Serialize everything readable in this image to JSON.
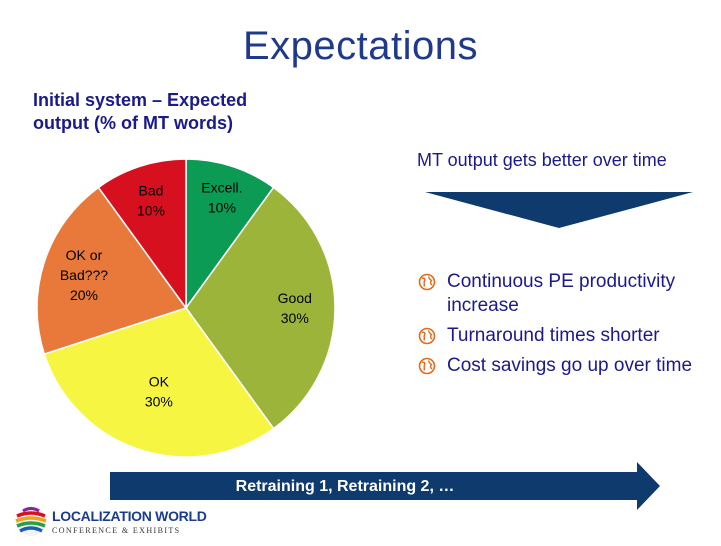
{
  "slide": {
    "title": "Expectations"
  },
  "chart_data": {
    "type": "pie",
    "title": "Initial system – Expected output (% of MT words)",
    "slices": [
      {
        "label_lines": [
          "Excell.",
          "10%"
        ],
        "name": "Excell.",
        "value": 10,
        "color": "#0b9b55"
      },
      {
        "label_lines": [
          "Good",
          "30%"
        ],
        "name": "Good",
        "value": 30,
        "color": "#9db43a"
      },
      {
        "label_lines": [
          "OK",
          "30%"
        ],
        "name": "OK",
        "value": 30,
        "color": "#f5f542"
      },
      {
        "label_lines": [
          "OK or",
          "Bad???",
          "20%"
        ],
        "name": "OK or Bad???",
        "value": 20,
        "color": "#e8793a"
      },
      {
        "label_lines": [
          "Bad",
          "10%"
        ],
        "name": "Bad",
        "value": 10,
        "color": "#d7101f"
      }
    ]
  },
  "right_panel": {
    "headline": "MT output gets better over time",
    "arrow_color": "#0f3a6e",
    "bullets": [
      "Continuous PE productivity increase",
      "Turnaround times shorter",
      "Cost savings go up over time"
    ]
  },
  "bottom_arrow": {
    "label": "Retraining 1, Retraining 2, …",
    "color": "#0f3a6e"
  },
  "logo": {
    "name": "LOCALIZATION WORLD",
    "subtitle": "CONFERENCE & EXHIBITS"
  }
}
